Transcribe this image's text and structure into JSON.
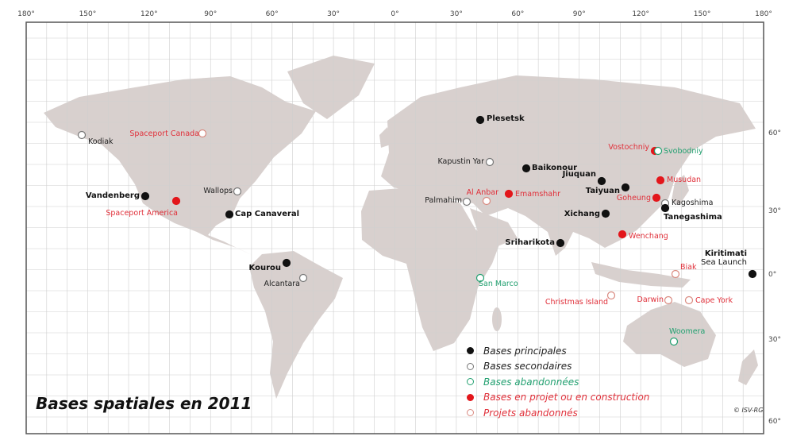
{
  "title": "Bases spatiales en 2011",
  "copyright": "© ISV-RG",
  "top_ticks": [
    "180°",
    "150°",
    "120°",
    "90°",
    "60°",
    "30°",
    "0°",
    "30°",
    "60°",
    "90°",
    "120°",
    "150°",
    "180°"
  ],
  "right_ticks": [
    "60°",
    "30°",
    "0°",
    "30°",
    "60°"
  ],
  "colors": {
    "land": "#d8d0ce",
    "principal": "#111111",
    "secondary": "#777777",
    "abandoned": "#22a070",
    "project": "#e3161b",
    "project_abandoned": "#d98a80"
  },
  "legend": [
    {
      "type": "principal",
      "label": "Bases principales"
    },
    {
      "type": "secondary",
      "label": "Bases secondaires"
    },
    {
      "type": "abandoned",
      "label": "Bases abandonnées"
    },
    {
      "type": "project",
      "label": "Bases en projet ou en construction"
    },
    {
      "type": "projab",
      "label": "Projets abandonnés"
    }
  ],
  "sites": [
    {
      "name": "Kodiak",
      "type": "secondary"
    },
    {
      "name": "Spaceport Canada",
      "type": "projab"
    },
    {
      "name": "Vandenberg",
      "type": "principal"
    },
    {
      "name": "Spaceport America",
      "type": "project"
    },
    {
      "name": "Wallops",
      "type": "secondary"
    },
    {
      "name": "Cap Canaveral",
      "type": "principal"
    },
    {
      "name": "Kourou",
      "type": "principal"
    },
    {
      "name": "Alcantara",
      "type": "secondary"
    },
    {
      "name": "Plesetsk",
      "type": "principal"
    },
    {
      "name": "Kapustin Yar",
      "type": "secondary"
    },
    {
      "name": "Baikonour",
      "type": "principal"
    },
    {
      "name": "Palmahim",
      "type": "secondary"
    },
    {
      "name": "Al Anbar",
      "type": "projab"
    },
    {
      "name": "Emamshahr",
      "type": "project"
    },
    {
      "name": "Jiuquan",
      "type": "principal"
    },
    {
      "name": "Taiyuan",
      "type": "principal"
    },
    {
      "name": "Xichang",
      "type": "principal"
    },
    {
      "name": "Sriharikota",
      "type": "principal"
    },
    {
      "name": "Wenchang",
      "type": "project"
    },
    {
      "name": "Vostochniy",
      "type": "project"
    },
    {
      "name": "Svobodniy",
      "type": "abandoned"
    },
    {
      "name": "Musudan",
      "type": "project"
    },
    {
      "name": "Goheung",
      "type": "project"
    },
    {
      "name": "Kagoshima",
      "type": "secondary"
    },
    {
      "name": "Tanegashima",
      "type": "principal"
    },
    {
      "name": "Kiritimati",
      "type": "principal",
      "sub": "Sea Launch"
    },
    {
      "name": "San Marco",
      "type": "abandoned"
    },
    {
      "name": "Christmas Island",
      "type": "projab"
    },
    {
      "name": "Biak",
      "type": "projab"
    },
    {
      "name": "Darwin",
      "type": "projab"
    },
    {
      "name": "Cape York",
      "type": "projab"
    },
    {
      "name": "Woomera",
      "type": "abandoned"
    }
  ]
}
